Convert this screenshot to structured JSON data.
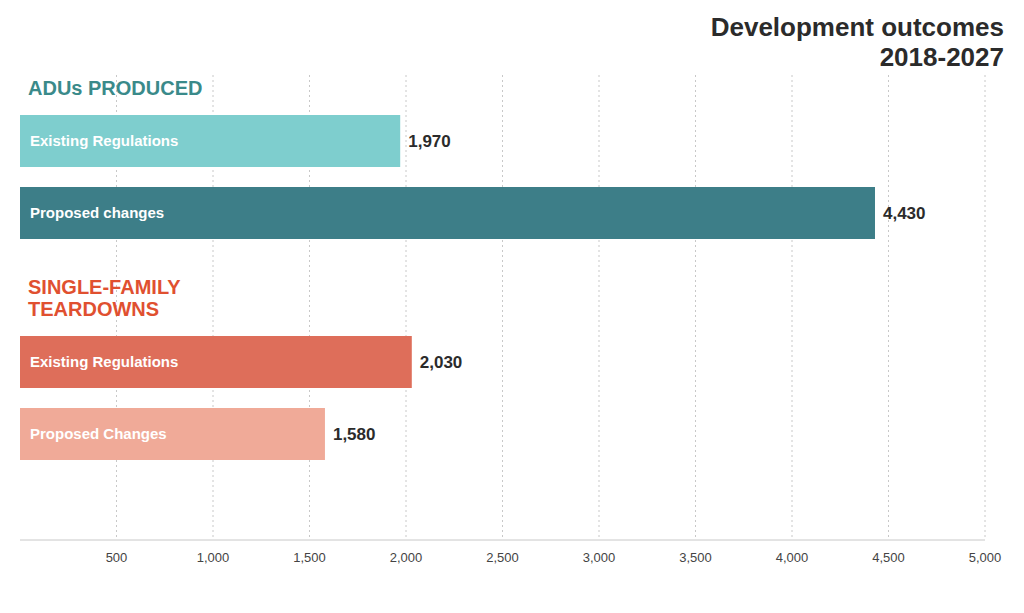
{
  "chart_data": {
    "type": "bar",
    "orientation": "horizontal",
    "title": "Development outcomes",
    "subtitle": "2018-2027",
    "categories": [
      "Existing Regulations",
      "Proposed changes",
      "Existing Regulations",
      "Proposed Changes"
    ],
    "values": [
      1970,
      4430,
      2030,
      1580
    ],
    "value_labels": [
      "1,970",
      "4,430",
      "2,030",
      "1,580"
    ],
    "data_labels": true,
    "colors": [
      "#7ecece",
      "#3d7e88",
      "#de6e5a",
      "#f0aa98"
    ],
    "annotations": [
      {
        "text": "ADUs PRODUCED",
        "color": "#3a8a8a"
      },
      {
        "text": "SINGLE-FAMILY\nTEARDOWNS",
        "color": "#e05030"
      }
    ],
    "xlim": [
      0,
      5000
    ],
    "xticks": [
      500,
      {
        "value": 1000,
        "label": "1,000"
      },
      {
        "value": 1500,
        "label": "1,500"
      },
      {
        "value": 2000,
        "label": "2,000"
      },
      {
        "value": 2500,
        "label": "2,500"
      },
      {
        "value": 3000,
        "label": "3,000"
      },
      {
        "value": 3500,
        "label": "3,500"
      },
      {
        "value": 4000,
        "label": "4,000"
      },
      {
        "value": 4500,
        "label": "4,500"
      },
      {
        "value": 5000,
        "label": "5,000"
      }
    ],
    "grid": true,
    "tick_labels": "x"
  }
}
